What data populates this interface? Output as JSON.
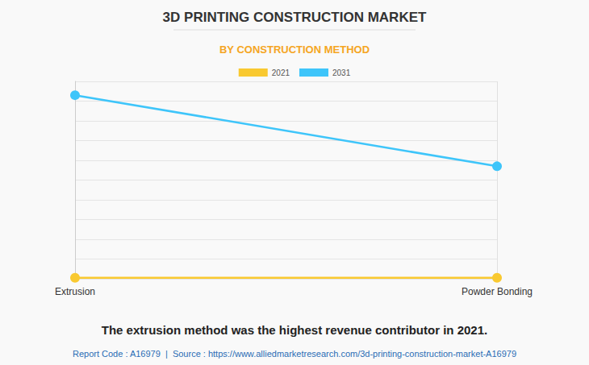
{
  "chart_data": {
    "type": "line",
    "title": "3D PRINTING CONSTRUCTION MARKET",
    "subtitle": "BY CONSTRUCTION METHOD",
    "categories": [
      "Extrusion",
      "Powder Bonding"
    ],
    "series": [
      {
        "name": "2021",
        "color": "#f9c930",
        "values": [
          0.05,
          0.05
        ]
      },
      {
        "name": "2031",
        "color": "#3ec5fa",
        "values": [
          9.3,
          5.7
        ]
      }
    ],
    "ylim": [
      0,
      10
    ],
    "yticks": [
      0,
      1,
      2,
      3,
      4,
      5,
      6,
      7,
      8,
      9,
      10
    ],
    "grid": true,
    "tick_labels": "x",
    "legend": "top",
    "marker": "circle",
    "annotations": [
      "The extrusion method was the highest revenue contributor in 2021.",
      "Report Code : A16979  |  Source : https://www.alliedmarketresearch.com/3d-printing-construction-market-A16979"
    ]
  }
}
